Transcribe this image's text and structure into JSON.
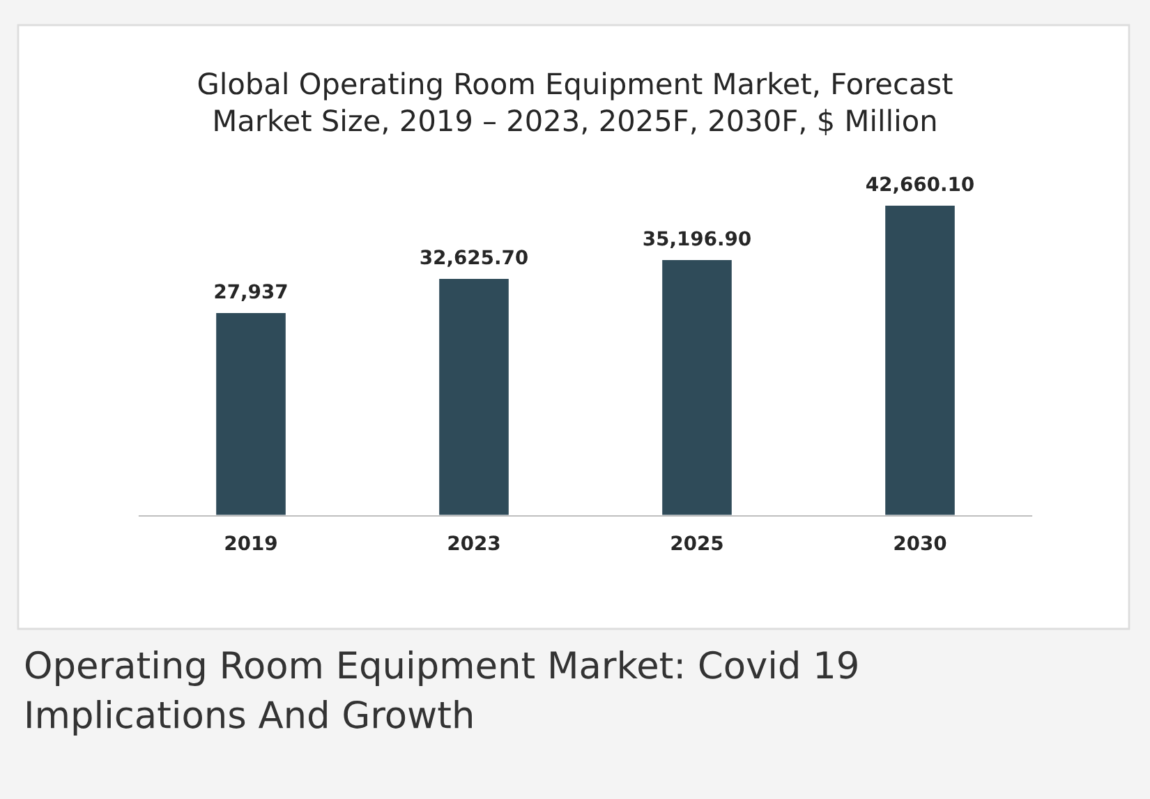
{
  "chart_data": {
    "type": "bar",
    "title": "Global Operating Room Equipment Market, Forecast\nMarket Size, 2019 – 2023, 2025F, 2030F, $ Million",
    "categories": [
      "2019",
      "2023",
      "2025",
      "2030"
    ],
    "values": [
      27937,
      32625.7,
      35196.9,
      42660.1
    ],
    "value_labels": [
      "27,937",
      "32,625.70",
      "35,196.90",
      "42,660.10"
    ],
    "color": "#2f4b59",
    "tick_labels": "x",
    "grid": false,
    "annotations": [
      "Operating Room Equipment Market: Covid 19\nImplications And Growth"
    ]
  }
}
